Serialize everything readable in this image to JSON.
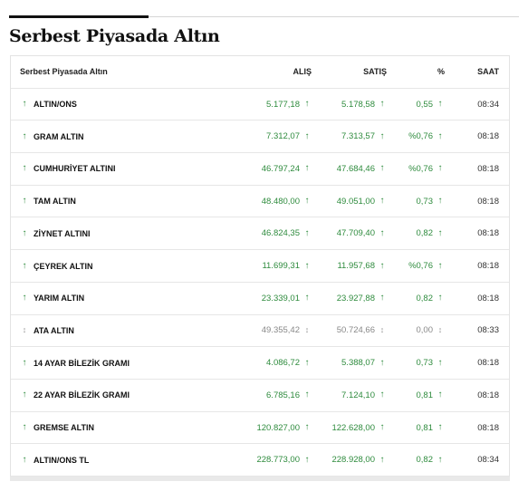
{
  "title": "Serbest Piyasada Altın",
  "colors": {
    "up": "#2e8b3d",
    "neutral": "#888888",
    "title": "#111111"
  },
  "table": {
    "headers": {
      "name": "Serbest Piyasada Altın",
      "alis": "ALIŞ",
      "satis": "SATIŞ",
      "pct": "%",
      "saat": "SAAT"
    },
    "rows": [
      {
        "name": "ALTIN/ONS",
        "trend": "up",
        "alis": "5.177,18",
        "satis": "5.178,58",
        "pct": "0,55",
        "saat": "08:34"
      },
      {
        "name": "GRAM ALTIN",
        "trend": "up",
        "alis": "7.312,07",
        "satis": "7.313,57",
        "pct": "%0,76",
        "saat": "08:18"
      },
      {
        "name": "CUMHURİYET ALTINI",
        "trend": "up",
        "alis": "46.797,24",
        "satis": "47.684,46",
        "pct": "%0,76",
        "saat": "08:18"
      },
      {
        "name": "TAM ALTIN",
        "trend": "up",
        "alis": "48.480,00",
        "satis": "49.051,00",
        "pct": "0,73",
        "saat": "08:18"
      },
      {
        "name": "ZİYNET ALTINI",
        "trend": "up",
        "alis": "46.824,35",
        "satis": "47.709,40",
        "pct": "0,82",
        "saat": "08:18"
      },
      {
        "name": "ÇEYREK ALTIN",
        "trend": "up",
        "alis": "11.699,31",
        "satis": "11.957,68",
        "pct": "%0,76",
        "saat": "08:18"
      },
      {
        "name": "YARIM ALTIN",
        "trend": "up",
        "alis": "23.339,01",
        "satis": "23.927,88",
        "pct": "0,82",
        "saat": "08:18"
      },
      {
        "name": "ATA ALTIN",
        "trend": "neutral",
        "alis": "49.355,42",
        "satis": "50.724,66",
        "pct": "0,00",
        "saat": "08:33"
      },
      {
        "name": "14 AYAR BİLEZİK GRAMI",
        "trend": "up",
        "alis": "4.086,72",
        "satis": "5.388,07",
        "pct": "0,73",
        "saat": "08:18"
      },
      {
        "name": "22 AYAR BİLEZİK GRAMI",
        "trend": "up",
        "alis": "6.785,16",
        "satis": "7.124,10",
        "pct": "0,81",
        "saat": "08:18"
      },
      {
        "name": "GREMSE ALTIN",
        "trend": "up",
        "alis": "120.827,00",
        "satis": "122.628,00",
        "pct": "0,81",
        "saat": "08:18"
      },
      {
        "name": "ALTIN/ONS TL",
        "trend": "up",
        "alis": "228.773,00",
        "satis": "228.928,00",
        "pct": "0,82",
        "saat": "08:34"
      }
    ]
  }
}
